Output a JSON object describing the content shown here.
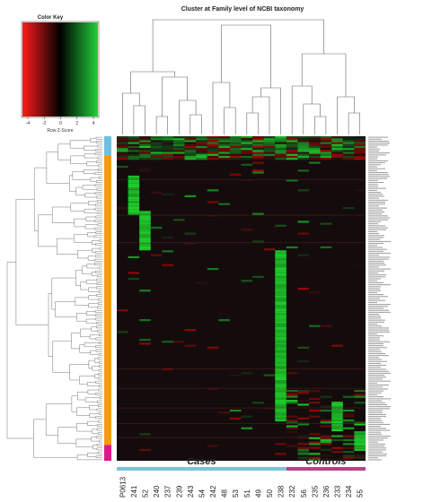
{
  "chart_data": {
    "type": "heatmap",
    "title": "Cluster at Family level of NCBI taxonomy",
    "color_key": {
      "title": "Color Key",
      "xlabel": "Row Z-Score",
      "ticks": [
        -4,
        -2,
        0,
        2,
        4
      ],
      "colors": {
        "low": "#ff1a1a",
        "mid": "#000000",
        "high": "#22d13a"
      }
    },
    "columns": [
      "P0613",
      "241",
      "52",
      "240",
      "237",
      "239",
      "243",
      "54",
      "242",
      "48",
      "53",
      "51",
      "49",
      "50",
      "238",
      "232",
      "56",
      "235",
      "236",
      "233",
      "234",
      "55"
    ],
    "groups": [
      {
        "label": "Cases",
        "color": "#79c4d6",
        "start": 0,
        "end": 14
      },
      {
        "label": "Controls",
        "color": "#b5428a",
        "start": 15,
        "end": 21
      }
    ],
    "row_count": 165,
    "row_side_colors": [
      {
        "color": "#f59a0d",
        "rows": "main cluster"
      },
      {
        "color": "#6fc0dd",
        "rows": "top cluster"
      },
      {
        "color": "#e0158a",
        "rows": "bottom cluster"
      }
    ],
    "highlights": [
      {
        "column": "241",
        "rows": [
          20,
          40
        ],
        "level": "high"
      },
      {
        "column": "52",
        "rows": [
          38,
          58
        ],
        "level": "high"
      },
      {
        "column": "238",
        "rows": [
          58,
          145
        ],
        "level": "high"
      },
      {
        "column": "233",
        "rows": [
          135,
          150
        ],
        "level": "high"
      },
      {
        "column": "55",
        "rows": [
          150,
          160
        ],
        "level": "high"
      }
    ]
  }
}
